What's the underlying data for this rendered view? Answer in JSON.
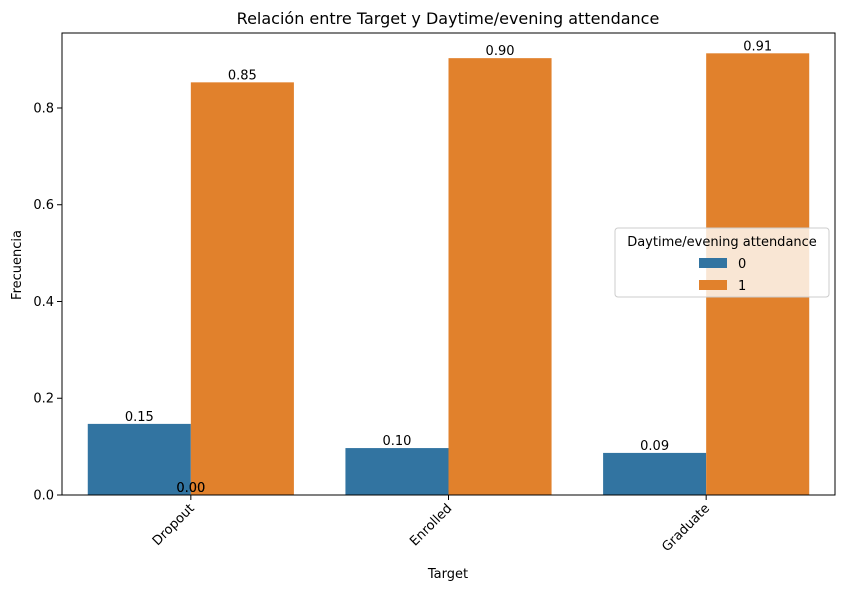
{
  "chart_data": {
    "type": "bar",
    "title": "Relación entre Target y Daytime/evening attendance",
    "xlabel": "Target",
    "ylabel": "Frecuencia",
    "categories": [
      "Dropout",
      "Enrolled",
      "Graduate"
    ],
    "series": [
      {
        "name": "0",
        "values": [
          0.147,
          0.097,
          0.087
        ],
        "color": "#3274a1"
      },
      {
        "name": "1",
        "values": [
          0.853,
          0.903,
          0.913
        ],
        "color": "#e1812c"
      }
    ],
    "data_labels": [
      [
        "0.15",
        "0.10",
        "0.09"
      ],
      [
        "0.85",
        "0.90",
        "0.91"
      ]
    ],
    "extra_labels": [
      {
        "category": "Dropout",
        "text": "0.00"
      },
      {
        "category": "Dropout",
        "text": "0.00"
      }
    ],
    "ylim": [
      0,
      0.955
    ],
    "yticks": [
      0.0,
      0.2,
      0.4,
      0.6,
      0.8
    ],
    "ytick_labels": [
      "0.0",
      "0.2",
      "0.4",
      "0.6",
      "0.8"
    ],
    "xtick_rotation": -45,
    "legend": {
      "title": "Daytime/evening attendance",
      "position": "center-right",
      "entries": [
        "0",
        "1"
      ]
    },
    "grid": false
  }
}
